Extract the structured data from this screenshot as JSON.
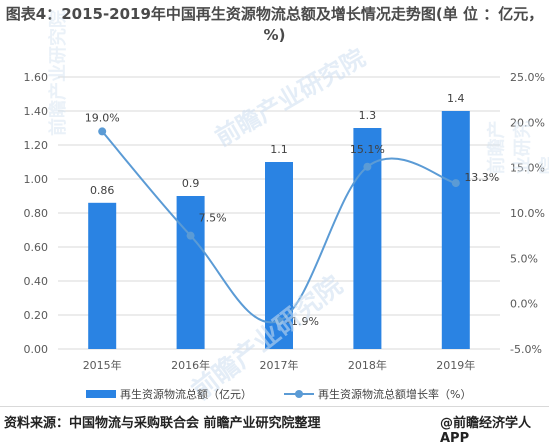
{
  "title": "图表4：2015-2019年中国再生资源物流总额及增长情况走势图(单 位 ：亿元，%)",
  "chart_data": {
    "type": "bar+line",
    "categories": [
      "2015年",
      "2016年",
      "2017年",
      "2018年",
      "2019年"
    ],
    "series": [
      {
        "name": "再生资源物流总额（亿元）",
        "type": "bar",
        "axis": "left",
        "values": [
          0.86,
          0.9,
          1.1,
          1.3,
          1.4
        ],
        "labels": [
          "0.86",
          "0.9",
          "1.1",
          "1.3",
          "1.4"
        ]
      },
      {
        "name": "再生资源物流总额增长率（%）",
        "type": "line",
        "axis": "right",
        "values": [
          19.0,
          7.5,
          -1.9,
          15.1,
          13.3
        ],
        "labels": [
          "19.0%",
          "7.5%",
          "-1.9%",
          "15.1%",
          "13.3%"
        ]
      }
    ],
    "y_left": {
      "min": 0,
      "max": 1.6,
      "ticks": [
        "0.00",
        "0.20",
        "0.40",
        "0.60",
        "0.80",
        "1.00",
        "1.20",
        "1.40",
        "1.60"
      ]
    },
    "y_right": {
      "min": -5,
      "max": 25,
      "ticks": [
        "-5.0%",
        "0.0%",
        "5.0%",
        "10.0%",
        "15.0%",
        "20.0%",
        "25.0%"
      ]
    },
    "grid": true,
    "legend": "bottom",
    "colors": {
      "bar": "#2a83e3",
      "line": "#5b9bd5"
    }
  },
  "legend": {
    "bar_label": "再生资源物流总额（亿元）",
    "line_label": "再生资源物流总额增长率（%）"
  },
  "footer": {
    "source": "资料来源：中国物流与采购联合会 前瞻产业研究院整理",
    "brand": "@前瞻经济学人APP"
  },
  "watermark": {
    "text": "前瞻产业研究院",
    "side_text": "前瞻产业研究院"
  }
}
